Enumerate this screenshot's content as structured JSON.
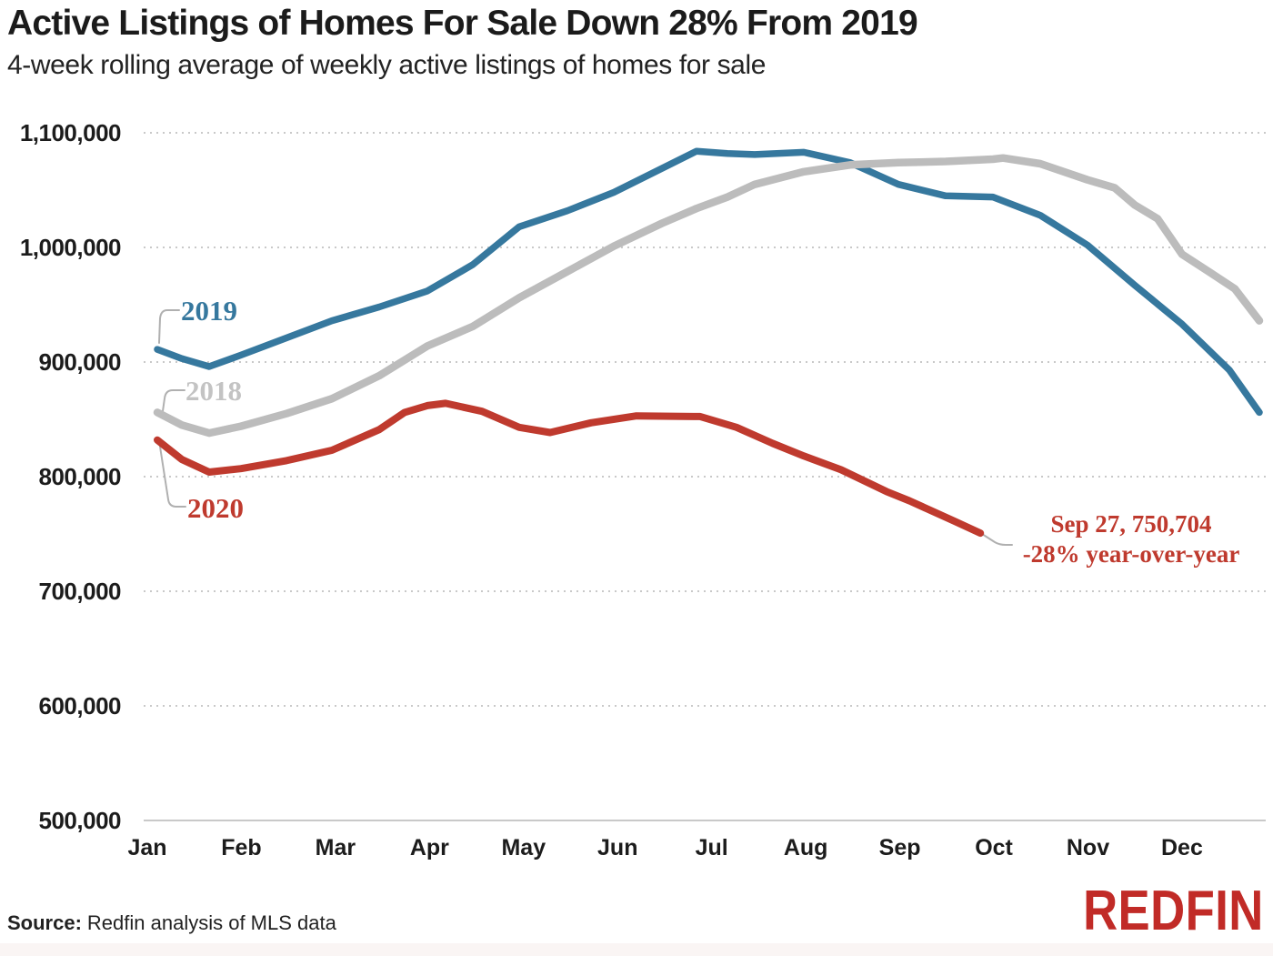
{
  "header": {
    "title": "Active Listings of Homes For Sale Down 28% From 2019",
    "subtitle": "4-week rolling average of weekly active listings of homes for sale"
  },
  "footer": {
    "source_label": "Source:",
    "source_text": "Redfin analysis of MLS data",
    "logo_text": "REDFIN"
  },
  "colors": {
    "accent_blue": "#36789e",
    "accent_gray": "#bcbcbc",
    "gray_label": "#c3c3c3",
    "accent_red": "#bf3a2e",
    "grid": "#c9c9c9",
    "axis_text": "#1c1c1c",
    "connector": "#b0b0b0",
    "logo_red": "#c12b27",
    "footer_strip": "#faf5f4"
  },
  "chart_data": {
    "type": "line",
    "title": "Active Listings of Homes For Sale Down 28% From 2019",
    "subtitle": "4-week rolling average of weekly active listings of homes for sale",
    "xlabel": "",
    "ylabel": "",
    "x_tick_labels": [
      "Jan",
      "Feb",
      "Mar",
      "Apr",
      "May",
      "Jun",
      "Jul",
      "Aug",
      "Sep",
      "Oct",
      "Nov",
      "Dec"
    ],
    "y_ticks": [
      {
        "value": 1100000,
        "label": "1,100,000"
      },
      {
        "value": 1000000,
        "label": "1,000,000"
      },
      {
        "value": 900000,
        "label": "900,000"
      },
      {
        "value": 800000,
        "label": "800,000"
      },
      {
        "value": 700000,
        "label": "700,000"
      },
      {
        "value": 600000,
        "label": "600,000"
      },
      {
        "value": 500000,
        "label": "500,000"
      }
    ],
    "ylim": [
      500000,
      1100000
    ],
    "grid": "horizontal-dotted",
    "legend": "inline-line-labels",
    "series": [
      {
        "name": "2019",
        "color": "#36789e",
        "points": [
          [
            0.106,
            911000
          ],
          [
            0.367,
            903000
          ],
          [
            0.657,
            896000
          ],
          [
            0.996,
            906000
          ],
          [
            1.479,
            921000
          ],
          [
            1.962,
            936000
          ],
          [
            2.465,
            948000
          ],
          [
            2.977,
            962000
          ],
          [
            3.461,
            985000
          ],
          [
            3.954,
            1018000
          ],
          [
            4.466,
            1032000
          ],
          [
            4.959,
            1048000
          ],
          [
            5.471,
            1069000
          ],
          [
            5.839,
            1084000
          ],
          [
            6.167,
            1082000
          ],
          [
            6.457,
            1081000
          ],
          [
            6.979,
            1083000
          ],
          [
            7.472,
            1074000
          ],
          [
            7.985,
            1055000
          ],
          [
            8.487,
            1045000
          ],
          [
            8.99,
            1044000
          ],
          [
            9.493,
            1028000
          ],
          [
            9.995,
            1002000
          ],
          [
            10.498,
            967000
          ],
          [
            11.0,
            933000
          ],
          [
            11.503,
            893000
          ],
          [
            11.822,
            856000
          ]
        ]
      },
      {
        "name": "2018",
        "color": "#bcbcbc",
        "points": [
          [
            0.106,
            856000
          ],
          [
            0.367,
            845000
          ],
          [
            0.657,
            838000
          ],
          [
            0.996,
            844000
          ],
          [
            1.479,
            855000
          ],
          [
            1.962,
            868000
          ],
          [
            2.465,
            888000
          ],
          [
            2.977,
            914000
          ],
          [
            3.461,
            931000
          ],
          [
            3.954,
            956000
          ],
          [
            4.466,
            979000
          ],
          [
            4.959,
            1001000
          ],
          [
            5.471,
            1021000
          ],
          [
            5.839,
            1034000
          ],
          [
            6.167,
            1044000
          ],
          [
            6.457,
            1055000
          ],
          [
            6.979,
            1066000
          ],
          [
            7.472,
            1072000
          ],
          [
            7.985,
            1074000
          ],
          [
            8.487,
            1075000
          ],
          [
            8.99,
            1077000
          ],
          [
            9.097,
            1078000
          ],
          [
            9.493,
            1073000
          ],
          [
            9.995,
            1059000
          ],
          [
            10.284,
            1052000
          ],
          [
            10.498,
            1037000
          ],
          [
            10.74,
            1025000
          ],
          [
            11.0,
            994000
          ],
          [
            11.3,
            978000
          ],
          [
            11.56,
            964000
          ],
          [
            11.822,
            936000
          ]
        ]
      },
      {
        "name": "2020",
        "color": "#bf3a2e",
        "points": [
          [
            0.106,
            832000
          ],
          [
            0.367,
            815000
          ],
          [
            0.657,
            804000
          ],
          [
            0.996,
            807000
          ],
          [
            1.479,
            814000
          ],
          [
            1.962,
            823000
          ],
          [
            2.465,
            841000
          ],
          [
            2.735,
            856000
          ],
          [
            2.977,
            862000
          ],
          [
            3.171,
            864000
          ],
          [
            3.558,
            857000
          ],
          [
            3.954,
            843000
          ],
          [
            4.282,
            838500
          ],
          [
            4.717,
            847000
          ],
          [
            5.2,
            853000
          ],
          [
            5.877,
            852500
          ],
          [
            6.264,
            843000
          ],
          [
            6.65,
            829000
          ],
          [
            6.979,
            818000
          ],
          [
            7.375,
            806000
          ],
          [
            7.859,
            787000
          ],
          [
            8.101,
            779000
          ],
          [
            8.584,
            761000
          ],
          [
            8.856,
            750704
          ]
        ]
      }
    ],
    "annotation": {
      "line1": "Sep 27, 750,704",
      "line2": "-28% year-over-year",
      "last_point": {
        "date": "Sep 27",
        "value": 750704,
        "yoy": "-28%"
      }
    }
  }
}
